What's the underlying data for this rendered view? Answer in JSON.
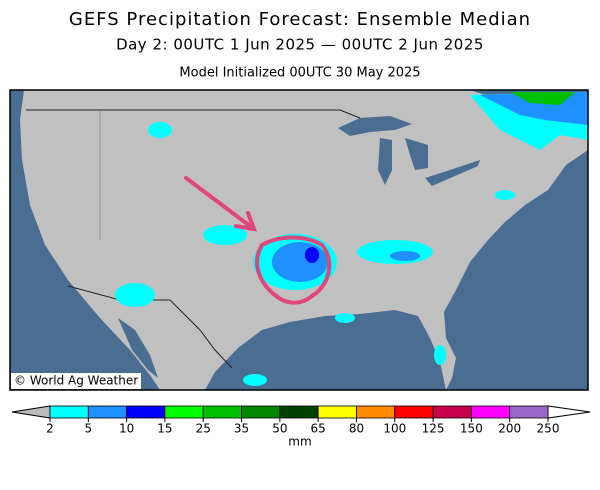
{
  "header": {
    "title": "GEFS Precipitation Forecast: Ensemble Median",
    "subtitle": "Day 2: 00UTC 1 Jun 2025 — 00UTC 2 Jun 2025",
    "initialized": "Model Initialized 00UTC 30 May 2025"
  },
  "map": {
    "credit": "© World Ag Weather"
  },
  "colorbar": {
    "ticks": [
      2,
      5,
      10,
      15,
      25,
      35,
      50,
      65,
      80,
      100,
      125,
      150,
      200,
      250
    ],
    "colors": [
      "#00ffff",
      "#1e90ff",
      "#0000ff",
      "#00ff00",
      "#00c000",
      "#008800",
      "#004000",
      "#ffff00",
      "#ff8c00",
      "#ff0000",
      "#c8004c",
      "#ff00ff",
      "#9966cc"
    ],
    "under_color": "#bbbbbb",
    "over_color": "#ffffff",
    "unit": "mm"
  }
}
